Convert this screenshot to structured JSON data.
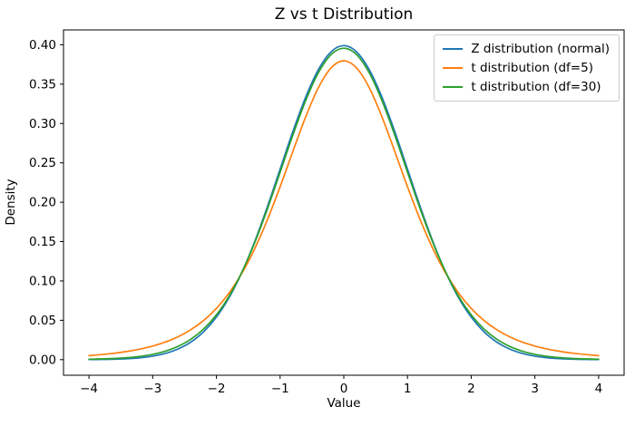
{
  "figure": {
    "title": "Z vs t Distribution"
  },
  "chart_data": {
    "type": "line",
    "title": "Z vs t Distribution",
    "xlabel": "Value",
    "ylabel": "Density",
    "xlim": [
      -4.4,
      4.4
    ],
    "ylim": [
      -0.0198,
      0.4189
    ],
    "xticks": [
      -4,
      -3,
      -2,
      -1,
      0,
      1,
      2,
      3,
      4
    ],
    "xtick_labels": [
      "−4",
      "−3",
      "−2",
      "−1",
      "0",
      "1",
      "2",
      "3",
      "4"
    ],
    "yticks": [
      0,
      0.05,
      0.1,
      0.15,
      0.2,
      0.25,
      0.3,
      0.35,
      0.4
    ],
    "ytick_labels": [
      "0.00",
      "0.05",
      "0.10",
      "0.15",
      "0.20",
      "0.25",
      "0.30",
      "0.35",
      "0.40"
    ],
    "grid": false,
    "legend_position": "upper right",
    "x": [
      -4,
      -3.8,
      -3.6,
      -3.4,
      -3.2,
      -3,
      -2.8,
      -2.6,
      -2.4,
      -2.2,
      -2,
      -1.8,
      -1.6,
      -1.4,
      -1.2,
      -1,
      -0.8,
      -0.6,
      -0.4,
      -0.2,
      0,
      0.2,
      0.4,
      0.6,
      0.8,
      1,
      1.2,
      1.4,
      1.6,
      1.8,
      2,
      2.2,
      2.4,
      2.6,
      2.8,
      3,
      3.2,
      3.4,
      3.6,
      3.8,
      4
    ],
    "series": [
      {
        "name": "Z distribution (normal)",
        "color": "#1f77b4",
        "values": [
          0.00013,
          0.00029,
          0.00061,
          0.00123,
          0.00238,
          0.00443,
          0.00792,
          0.01358,
          0.02239,
          0.03547,
          0.05399,
          0.07895,
          0.11092,
          0.14973,
          0.19419,
          0.24197,
          0.28969,
          0.33322,
          0.36827,
          0.39104,
          0.39894,
          0.39104,
          0.36827,
          0.33322,
          0.28969,
          0.24197,
          0.19419,
          0.14973,
          0.11092,
          0.07895,
          0.05399,
          0.03547,
          0.02239,
          0.01358,
          0.00792,
          0.00443,
          0.00238,
          0.00123,
          0.00061,
          0.00029,
          0.00013
        ]
      },
      {
        "name": "t distribution (df=5)",
        "color": "#ff7f0e",
        "values": [
          0.00512,
          0.00646,
          0.00819,
          0.01045,
          0.01341,
          0.01729,
          0.02242,
          0.02918,
          0.03809,
          0.0498,
          0.06509,
          0.08481,
          0.10982,
          0.14074,
          0.17766,
          0.21968,
          0.26448,
          0.30813,
          0.34537,
          0.37063,
          0.3796,
          0.37063,
          0.34537,
          0.30813,
          0.26448,
          0.21968,
          0.17766,
          0.14074,
          0.10982,
          0.08481,
          0.06509,
          0.0498,
          0.03809,
          0.02918,
          0.02242,
          0.01729,
          0.01341,
          0.01045,
          0.00819,
          0.00646,
          0.00512
        ]
      },
      {
        "name": "t distribution (df=30)",
        "color": "#2ca02c",
        "values": [
          0.00052,
          0.0009,
          0.00151,
          0.00253,
          0.00417,
          0.00678,
          0.01081,
          0.01695,
          0.02603,
          0.03899,
          0.05685,
          0.08071,
          0.1112,
          0.14834,
          0.1913,
          0.238,
          0.28522,
          0.32885,
          0.36432,
          0.38754,
          0.39563,
          0.38754,
          0.36432,
          0.32885,
          0.28522,
          0.238,
          0.1913,
          0.14834,
          0.1112,
          0.08071,
          0.05685,
          0.03899,
          0.02603,
          0.01695,
          0.01081,
          0.00678,
          0.00417,
          0.00253,
          0.00151,
          0.0009,
          0.00052
        ]
      }
    ],
    "style": {
      "spine_color": "#000000",
      "tick_color": "#000000",
      "line_width": 1.7
    }
  }
}
